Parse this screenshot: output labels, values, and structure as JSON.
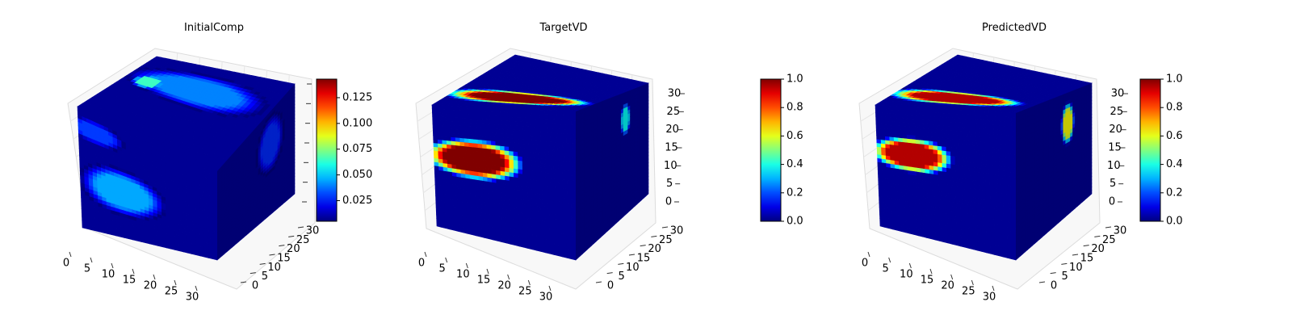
{
  "chart_data": [
    {
      "type": "voxel-3d",
      "title": "InitialComp",
      "axes": {
        "x": {
          "range": [
            0,
            32
          ],
          "ticks": [
            "0",
            "5",
            "10",
            "15",
            "20",
            "25",
            "30"
          ]
        },
        "y": {
          "range": [
            0,
            32
          ],
          "ticks": [
            "0",
            "5",
            "10",
            "15",
            "20",
            "25",
            "30"
          ]
        },
        "z": {
          "range": [
            0,
            32
          ],
          "ticks": []
        }
      },
      "colorbar": {
        "colormap": "jet",
        "range": [
          0.005,
          0.143
        ],
        "ticks": [
          "0.025",
          "0.050",
          "0.075",
          "0.100",
          "0.125"
        ]
      },
      "features": [
        {
          "face": "front",
          "center": [
            10,
            13
          ],
          "radii": [
            9,
            6
          ],
          "value": 0.045
        },
        {
          "face": "front-top-band",
          "center": [
            4,
            27
          ],
          "radii": [
            6,
            3
          ],
          "value": 0.03
        },
        {
          "face": "top",
          "center": [
            5,
            20
          ],
          "radii": [
            3,
            3
          ],
          "value": 0.065
        },
        {
          "face": "top",
          "center": [
            15,
            22
          ],
          "radii": [
            14,
            6
          ],
          "value": 0.04
        },
        {
          "face": "side",
          "center": [
            22,
            22
          ],
          "radii": [
            5,
            8
          ],
          "value": 0.028
        }
      ]
    },
    {
      "type": "voxel-3d",
      "title": "TargetVD",
      "axes": {
        "x": {
          "range": [
            0,
            32
          ],
          "ticks": [
            "0",
            "5",
            "10",
            "15",
            "20",
            "25",
            "30"
          ]
        },
        "y": {
          "range": [
            0,
            32
          ],
          "ticks": [
            "0",
            "5",
            "10",
            "15",
            "20",
            "25",
            "30"
          ]
        },
        "z": {
          "range": [
            0,
            32
          ],
          "ticks": [
            "0",
            "5",
            "10",
            "15",
            "20",
            "25",
            "30"
          ]
        }
      },
      "colorbar": {
        "colormap": "jet",
        "range": [
          0,
          1
        ],
        "ticks": [
          "0.0",
          "0.2",
          "0.4",
          "0.6",
          "0.8",
          "1.0"
        ]
      },
      "features": [
        {
          "face": "front",
          "center": [
            9,
            19
          ],
          "radii": [
            10,
            4.5
          ],
          "value": 1.0
        },
        {
          "face": "top",
          "center": [
            15,
            8
          ],
          "radii": [
            15,
            4
          ],
          "value": 1.0
        },
        {
          "face": "side",
          "center": [
            22,
            25
          ],
          "radii": [
            2,
            4
          ],
          "value": 0.38
        }
      ]
    },
    {
      "type": "voxel-3d",
      "title": "PredictedVD",
      "axes": {
        "x": {
          "range": [
            0,
            32
          ],
          "ticks": [
            "0",
            "5",
            "10",
            "15",
            "20",
            "25",
            "30"
          ]
        },
        "y": {
          "range": [
            0,
            32
          ],
          "ticks": [
            "0",
            "5",
            "10",
            "15",
            "20",
            "25",
            "30"
          ]
        },
        "z": {
          "range": [
            0,
            32
          ],
          "ticks": [
            "0",
            "5",
            "10",
            "15",
            "20",
            "25",
            "30"
          ]
        }
      },
      "colorbar": {
        "colormap": "jet",
        "range": [
          0,
          1
        ],
        "ticks": [
          "0.0",
          "0.2",
          "0.4",
          "0.6",
          "0.8",
          "1.0"
        ]
      },
      "features": [
        {
          "face": "front",
          "center": [
            8,
            20
          ],
          "radii": [
            8.5,
            4
          ],
          "value": 0.95
        },
        {
          "face": "top",
          "center": [
            14,
            8
          ],
          "radii": [
            14,
            4
          ],
          "value": 0.95
        },
        {
          "face": "side",
          "center": [
            22,
            24
          ],
          "radii": [
            2.5,
            5
          ],
          "value": 0.62
        }
      ]
    }
  ]
}
